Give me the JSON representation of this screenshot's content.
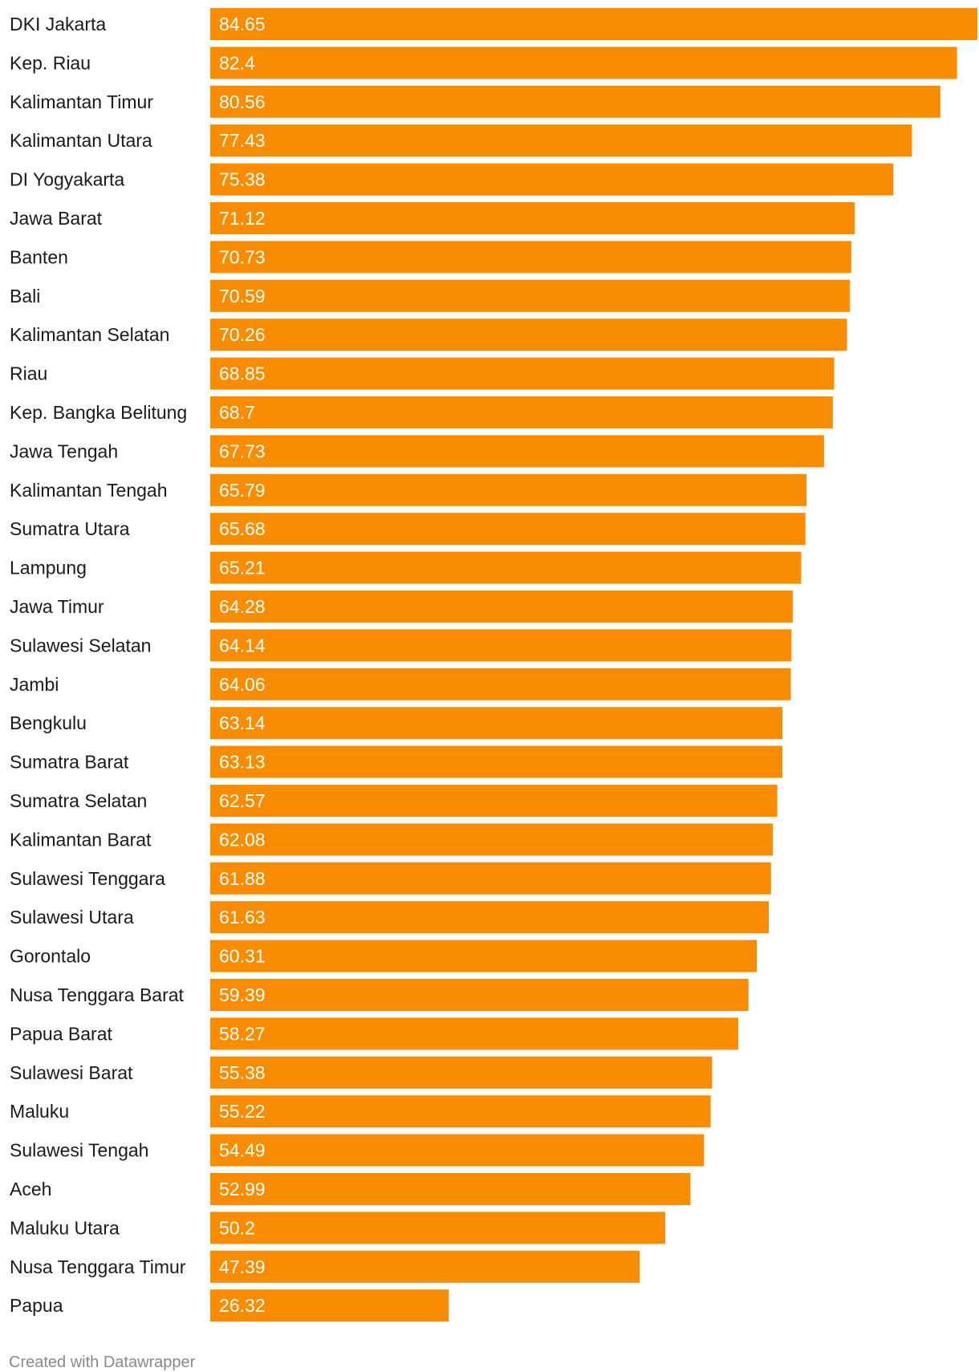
{
  "chart_data": {
    "type": "bar",
    "orientation": "horizontal",
    "title": "",
    "xlabel": "",
    "ylabel": "",
    "categories": [
      "DKI Jakarta",
      "Kep. Riau",
      "Kalimantan Timur",
      "Kalimantan Utara",
      "DI Yogyakarta",
      "Jawa Barat",
      "Banten",
      "Bali",
      "Kalimantan Selatan",
      "Riau",
      "Kep. Bangka Belitung",
      "Jawa Tengah",
      "Kalimantan Tengah",
      "Sumatra Utara",
      "Lampung",
      "Jawa Timur",
      "Sulawesi Selatan",
      "Jambi",
      "Bengkulu",
      "Sumatra Barat",
      "Sumatra Selatan",
      "Kalimantan Barat",
      "Sulawesi Tenggara",
      "Sulawesi Utara",
      "Gorontalo",
      "Nusa Tenggara Barat",
      "Papua Barat",
      "Sulawesi Barat",
      "Maluku",
      "Sulawesi Tengah",
      "Aceh",
      "Maluku Utara",
      "Nusa Tenggara Timur",
      "Papua"
    ],
    "values": [
      84.65,
      82.4,
      80.56,
      77.43,
      75.38,
      71.12,
      70.73,
      70.59,
      70.26,
      68.85,
      68.7,
      67.73,
      65.79,
      65.68,
      65.21,
      64.28,
      64.14,
      64.06,
      63.14,
      63.13,
      62.57,
      62.08,
      61.88,
      61.63,
      60.31,
      59.39,
      58.27,
      55.38,
      55.22,
      54.49,
      52.99,
      50.2,
      47.39,
      26.32
    ],
    "value_labels": [
      "84.65",
      "82.4",
      "80.56",
      "77.43",
      "75.38",
      "71.12",
      "70.73",
      "70.59",
      "70.26",
      "68.85",
      "68.7",
      "67.73",
      "65.79",
      "65.68",
      "65.21",
      "64.28",
      "64.14",
      "64.06",
      "63.14",
      "63.13",
      "62.57",
      "62.08",
      "61.88",
      "61.63",
      "60.31",
      "59.39",
      "58.27",
      "55.38",
      "55.22",
      "54.49",
      "52.99",
      "50.2",
      "47.39",
      "26.32"
    ],
    "xlim": [
      0,
      84.65
    ],
    "grid": false,
    "legend": "none",
    "bar_color": "#F98C00"
  },
  "footer": {
    "credit": "Created with Datawrapper"
  }
}
